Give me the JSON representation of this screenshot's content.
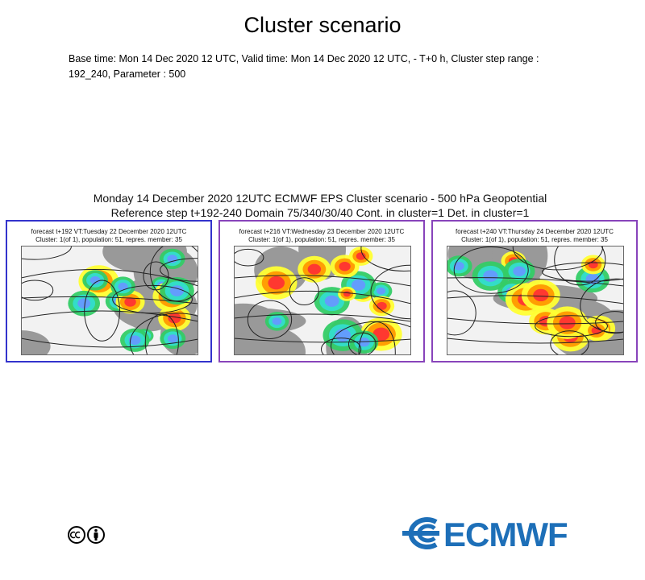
{
  "header": {
    "title": "Cluster scenario",
    "description": "Base time: Mon 14 Dec 2020 12 UTC, Valid time: Mon 14 Dec 2020 12 UTC, - T+0 h, Cluster step range : 192_240, Parameter : 500"
  },
  "figure": {
    "title_lines": [
      "Monday 14 December 2020 12UTC ECMWF EPS Cluster scenario - 500 hPa Geopotential",
      "Reference step t+192-240 Domain 75/340/30/40 Cont. in cluster=1 Det. in cluster=1"
    ],
    "panels": [
      {
        "lines": [
          "forecast t+192 VT:Tuesday 22 December 2020 12UTC",
          "Cluster: 1(of 1), population: 51, repres. member: 35"
        ],
        "border_color": "#3333cc"
      },
      {
        "lines": [
          "forecast t+216 VT:Wednesday 23 December 2020 12UTC",
          "Cluster: 1(of 1), population: 51, repres. member: 35"
        ],
        "border_color": "#8844bb"
      },
      {
        "lines": [
          "forecast t+240 VT:Thursday 24 December 2020 12UTC",
          "Cluster: 1(of 1), population: 51, repres. member: 35"
        ],
        "border_color": "#8844bb"
      }
    ]
  },
  "footer": {
    "logo_text": "ECMWF"
  }
}
